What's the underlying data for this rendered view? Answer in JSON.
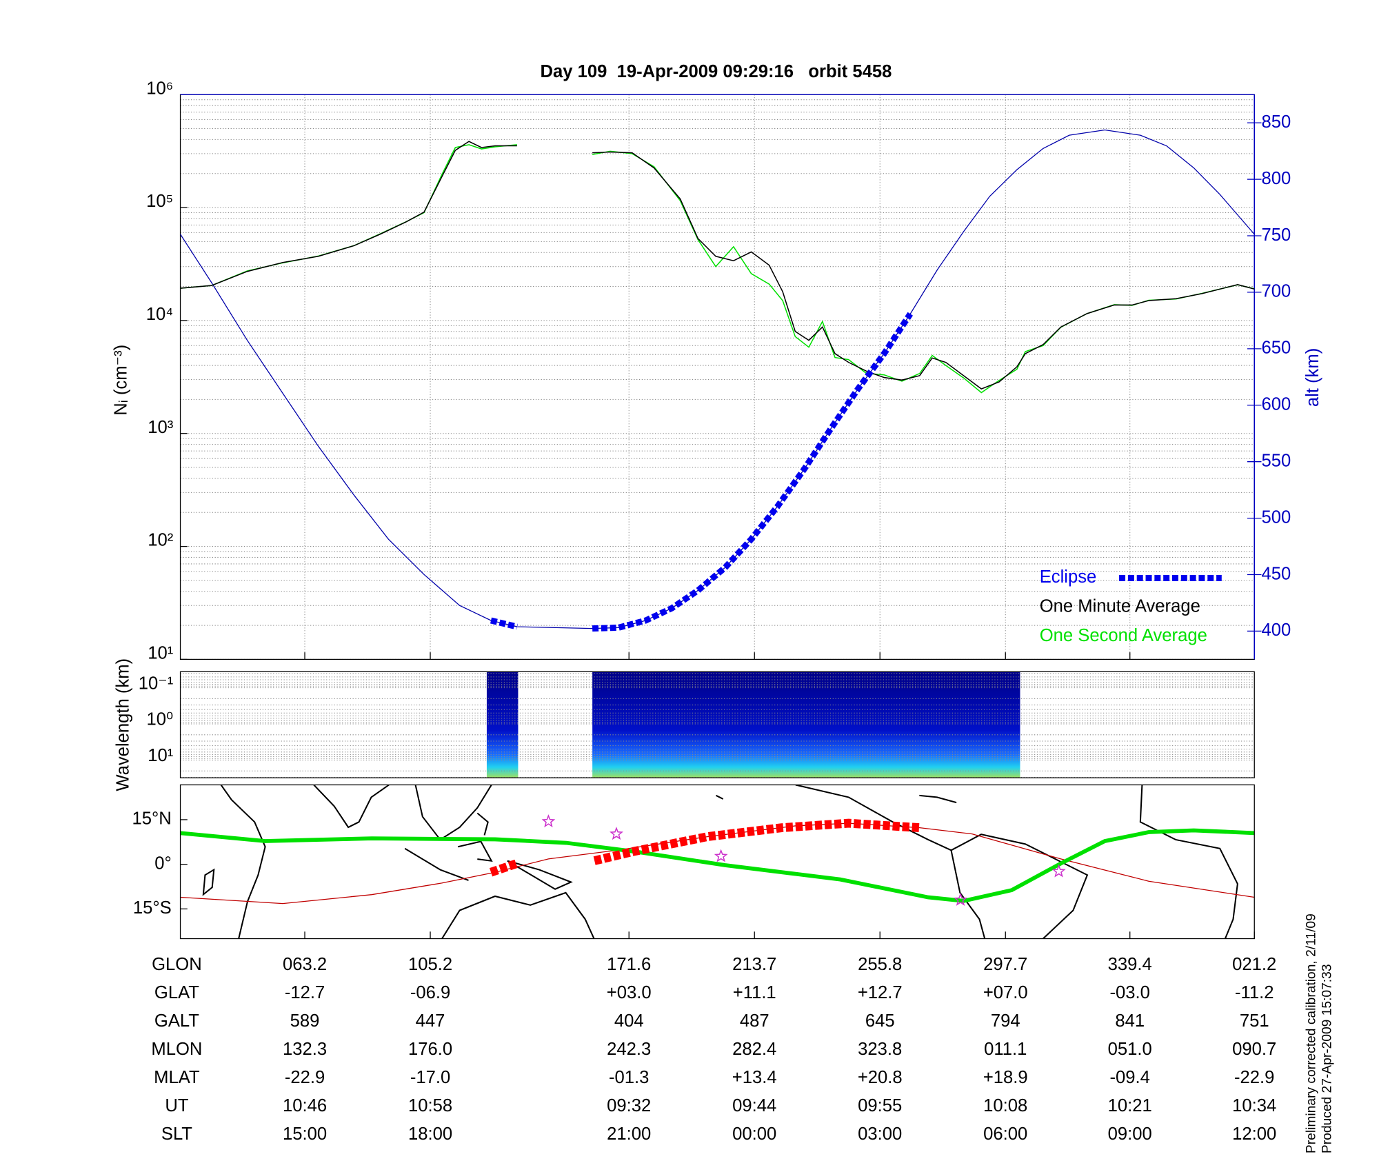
{
  "title": "Day 109  19-Apr-2009 09:29:16   orbit 5458",
  "chart_data": [
    {
      "type": "line",
      "ylabel": "Nᵢ (cm⁻³)",
      "y2label": "alt (km)",
      "xlim": [
        0,
        102.7
      ],
      "xticks": [
        11.9,
        23.9,
        42.9,
        54.9,
        66.9,
        78.9,
        90.8,
        102.7
      ],
      "ylog": true,
      "ylim": [
        10,
        1000000
      ],
      "yticks": [
        {
          "value": 10,
          "label": "10¹"
        },
        {
          "value": 100,
          "label": "10²"
        },
        {
          "value": 1000,
          "label": "10³"
        },
        {
          "value": 10000,
          "label": "10⁴"
        },
        {
          "value": 100000,
          "label": "10⁵"
        },
        {
          "value": 1000000,
          "label": "10⁶"
        }
      ],
      "y2lim": [
        375,
        875
      ],
      "y2ticks": [
        400,
        450,
        500,
        550,
        600,
        650,
        700,
        750,
        800,
        850
      ],
      "y2color": "#0000c0",
      "grid": true,
      "legend": "lower right",
      "series": [
        {
          "name": "Eclipse",
          "color": "#0000ee",
          "axis": "y2",
          "style": "thick-dashed",
          "x": [
            29.7,
            32.2,
            35.0,
            39.4,
            41.9,
            44.5,
            47.0,
            49.5,
            52.1,
            54.6,
            57.1,
            59.7,
            62.2,
            64.8,
            67.3,
            69.8
          ],
          "values": [
            409.4,
            403.9,
            null,
            402.3,
            403.1,
            409.4,
            420.3,
            436.0,
            456.4,
            481.4,
            510.4,
            544.0,
            579.2,
            614.4,
            645.7,
            680.9
          ]
        },
        {
          "name": "One Minute Average",
          "color": "#000000",
          "axis": "y",
          "x": [
            0,
            3.0,
            6.4,
            9.8,
            13.2,
            16.6,
            19.1,
            21.6,
            23.3,
            25.0,
            26.3,
            27.6,
            28.8,
            30.1,
            32.2,
            35.0,
            39.4,
            41.1,
            43.2,
            45.3,
            47.8,
            49.5,
            51.2,
            52.9,
            54.6,
            56.3,
            57.6,
            58.8,
            60.1,
            61.4,
            62.6,
            63.9,
            65.6,
            67.3,
            69.0,
            70.7,
            71.9,
            73.2,
            74.9,
            76.6,
            78.3,
            80.0,
            80.8,
            82.5,
            84.2,
            86.7,
            89.3,
            91.0,
            92.6,
            95.2,
            97.7,
            101.1,
            102.7
          ],
          "values": [
            19300,
            20400,
            27200,
            32600,
            37000,
            45900,
            58000,
            74700,
            91000,
            187000,
            321000,
            385000,
            340000,
            352000,
            352000,
            null,
            305000,
            310000,
            305000,
            224000,
            119000,
            53100,
            37000,
            33800,
            40500,
            30900,
            18000,
            8000,
            6680,
            8750,
            5090,
            4260,
            3560,
            3130,
            2970,
            3250,
            4660,
            4260,
            3250,
            2480,
            2860,
            3890,
            5090,
            6110,
            8750,
            11500,
            13700,
            13700,
            15000,
            15600,
            17300,
            20800,
            19000
          ]
        },
        {
          "name": "One Second Average",
          "color": "#00e000",
          "axis": "y",
          "x": [
            0,
            3.0,
            6.4,
            9.8,
            13.2,
            16.6,
            19.1,
            21.6,
            23.3,
            25.0,
            26.3,
            27.6,
            28.8,
            30.1,
            32.2,
            35.0,
            39.4,
            41.1,
            43.2,
            45.3,
            47.8,
            49.5,
            51.2,
            52.9,
            54.6,
            56.3,
            57.6,
            58.8,
            60.1,
            61.4,
            62.6,
            63.9,
            65.6,
            67.3,
            69.0,
            70.7,
            71.9,
            73.2,
            74.9,
            76.6,
            78.3,
            80.0,
            80.8,
            82.5,
            84.2,
            86.7,
            89.3,
            91.0,
            92.6,
            95.2,
            97.7,
            101.1,
            102.7
          ],
          "values": [
            19300,
            20400,
            27500,
            32400,
            37200,
            46000,
            58500,
            75000,
            90000,
            195000,
            340000,
            360000,
            330000,
            345000,
            360000,
            null,
            295000,
            315000,
            300000,
            230000,
            115000,
            52000,
            30000,
            45000,
            26000,
            21000,
            15000,
            7200,
            5800,
            9800,
            4700,
            4500,
            3400,
            3300,
            2900,
            3400,
            4900,
            4000,
            3100,
            2300,
            2950,
            3700,
            5300,
            6000,
            8700,
            11500,
            13800,
            13600,
            15100,
            15500,
            17400,
            20700,
            19100
          ]
        },
        {
          "color": "#0000aa",
          "axis": "y2",
          "x": [
            0,
            3.0,
            6.4,
            9.8,
            13.2,
            16.6,
            19.9,
            23.3,
            26.7,
            29.7,
            32.2,
            39.4,
            41.9,
            44.5,
            47.0,
            49.5,
            52.1,
            54.6,
            57.1,
            59.7,
            62.2,
            64.8,
            67.3,
            69.8,
            72.4,
            74.9,
            77.4,
            80.0,
            82.5,
            85.0,
            88.4,
            91.8,
            94.3,
            96.9,
            99.4,
            102.7
          ],
          "values": [
            751.4,
            708.3,
            657.5,
            610.5,
            563.6,
            520.5,
            481.4,
            450.1,
            422.7,
            409.4,
            403.9,
            402.3,
            403.1,
            409.4,
            420.3,
            436.0,
            456.4,
            481.4,
            510.4,
            544.0,
            579.2,
            614.4,
            645.7,
            680.9,
            720.1,
            753.7,
            785.0,
            808.5,
            827.3,
            839.0,
            843.7,
            839.0,
            829.6,
            810.1,
            786.6,
            751.4
          ]
        }
      ]
    },
    {
      "type": "spectrogram",
      "ylabel": "Wavelength (km)",
      "xlim": [
        0,
        102.7
      ],
      "ylog": true,
      "yreversed": true,
      "ylim": [
        0.036,
        31
      ],
      "yticks": [
        {
          "value": 0.1,
          "label": "10⁻¹"
        },
        {
          "value": 1,
          "label": "10⁰"
        },
        {
          "value": 10,
          "label": "10¹"
        }
      ],
      "grid": true,
      "data_ranges": [
        [
          29.3,
          32.3
        ],
        [
          39.4,
          80.3
        ]
      ]
    },
    {
      "type": "map",
      "xlim": [
        0,
        102.7
      ],
      "xticks": [
        11.9,
        23.9,
        42.9,
        54.9,
        66.9,
        78.9,
        90.8,
        102.7
      ],
      "ylim": [
        -25,
        26.7
      ],
      "yticks": [
        {
          "value": 15,
          "label": "15°N"
        },
        {
          "value": 0,
          "label": "0°"
        },
        {
          "value": -15,
          "label": "15°S"
        }
      ],
      "series": [
        {
          "color": "#c00000",
          "style": "thin",
          "x": [
            0,
            9.8,
            18.3,
            25.0,
            30.1,
            35.2,
            41.9,
            50.4,
            58.8,
            63.9,
            70.7,
            75.7,
            84.2,
            92.6,
            102.7
          ],
          "values": [
            -11.1,
            -13.2,
            -10.2,
            -6.3,
            -2.7,
            1.8,
            4.8,
            9.3,
            12.9,
            13.8,
            12.3,
            10.2,
            1.8,
            -5.7,
            -11.1
          ]
        },
        {
          "color": "#00e000",
          "style": "thick",
          "x": [
            0,
            8.1,
            18.3,
            30.1,
            36.9,
            43.6,
            52.1,
            63.1,
            71.5,
            74.9,
            79.5,
            84.2,
            88.4,
            92.6,
            96.9,
            102.7
          ],
          "values": [
            10.5,
            7.8,
            8.7,
            8.4,
            7.2,
            4.2,
            -0.3,
            -5.1,
            -11.1,
            -12.3,
            -8.7,
            0.3,
            7.8,
            10.8,
            11.4,
            10.5
          ]
        },
        {
          "color": "#ff0000",
          "style": "thick-dashed",
          "x": [
            29.7,
            32.2,
            35.0,
            39.6,
            43.2,
            50.4,
            57.5,
            63.9,
            70.7
          ],
          "values": [
            -2.7,
            0.3,
            null,
            1.2,
            4.2,
            9.3,
            12.3,
            13.8,
            12.3
          ]
        }
      ],
      "stars": {
        "color": "#cc33cc",
        "x": [
          35.2,
          41.7,
          51.7,
          74.6,
          84.0
        ],
        "values": [
          14.4,
          10.2,
          2.7,
          -12.0,
          -2.4
        ]
      }
    }
  ],
  "table": {
    "row_labels": [
      "GLON",
      "GLAT",
      "GALT",
      "MLON",
      "MLAT",
      "UT",
      "SLT"
    ],
    "rows": [
      [
        "063.2",
        "105.2",
        "171.6",
        "213.7",
        "255.8",
        "297.7",
        "339.4",
        "021.2"
      ],
      [
        "-12.7",
        "-06.9",
        "+03.0",
        "+11.1",
        "+12.7",
        "+07.0",
        "-03.0",
        "-11.2"
      ],
      [
        "589",
        "447",
        "404",
        "487",
        "645",
        "794",
        "841",
        "751"
      ],
      [
        "132.3",
        "176.0",
        "242.3",
        "282.4",
        "323.8",
        "011.1",
        "051.0",
        "090.7"
      ],
      [
        "-22.9",
        "-17.0",
        "-01.3",
        "+13.4",
        "+20.8",
        "+18.9",
        "-09.4",
        "-22.9"
      ],
      [
        "10:46",
        "10:58",
        "09:32",
        "09:44",
        "09:55",
        "10:08",
        "10:21",
        "10:34"
      ],
      [
        "15:00",
        "18:00",
        "21:00",
        "00:00",
        "03:00",
        "06:00",
        "09:00",
        "12:00"
      ]
    ]
  },
  "notes": [
    "Preliminary corrected calibration, 2/11/09",
    "Produced 27-Apr-2009 15:07:33"
  ]
}
